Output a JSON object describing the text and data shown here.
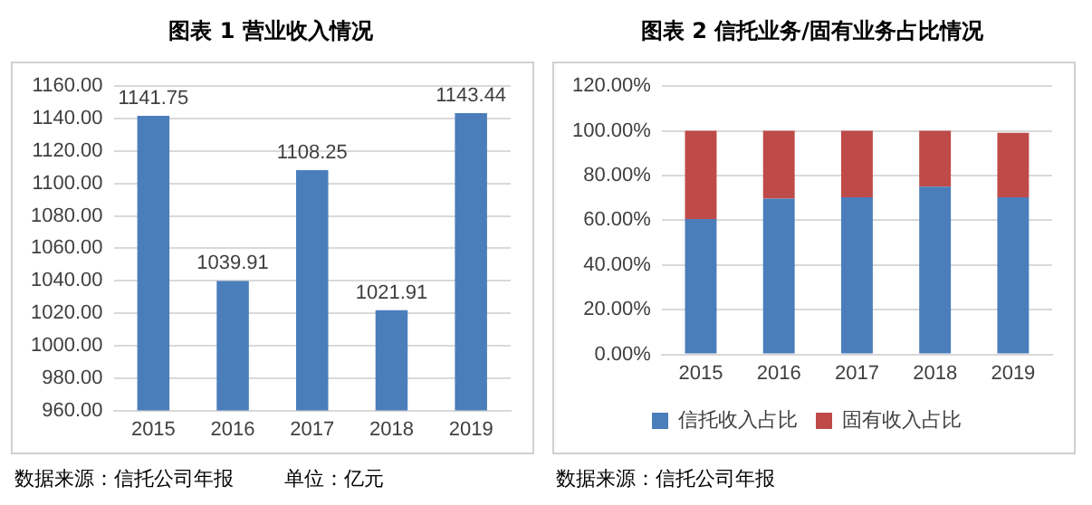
{
  "chart_data": [
    {
      "type": "bar",
      "title": "图表 1  营业收入情况",
      "categories": [
        "2015",
        "2016",
        "2017",
        "2018",
        "2019"
      ],
      "values": [
        1141.75,
        1039.91,
        1108.25,
        1021.91,
        1143.44
      ],
      "color": "#4a7ebb",
      "ylim": [
        960,
        1160
      ],
      "yticks": [
        {
          "value": 960,
          "label": "960.00"
        },
        {
          "value": 980,
          "label": "980.00"
        },
        {
          "value": 1000,
          "label": "1000.00"
        },
        {
          "value": 1020,
          "label": "1020.00"
        },
        {
          "value": 1040,
          "label": "1040.00"
        },
        {
          "value": 1060,
          "label": "1060.00"
        },
        {
          "value": 1080,
          "label": "1080.00"
        },
        {
          "value": 1100,
          "label": "1100.00"
        },
        {
          "value": 1120,
          "label": "1120.00"
        },
        {
          "value": 1140,
          "label": "1140.00"
        },
        {
          "value": 1160,
          "label": "1160.00"
        }
      ],
      "grid": "y",
      "data_labels": true,
      "legend": false,
      "annotations": [
        "数据来源：信托公司年报",
        "单位：亿元"
      ]
    },
    {
      "type": "bar",
      "title": "图表 2  信托业务/固有业务占比情况",
      "categories": [
        "2015",
        "2016",
        "2017",
        "2018",
        "2019"
      ],
      "stacked": true,
      "series": [
        {
          "name": "信托收入占比",
          "color": "#4a7ebb",
          "values": [
            60.6,
            69.7,
            70.3,
            75,
            70.3
          ]
        },
        {
          "name": "固有收入占比",
          "color": "#be4b48",
          "values": [
            39.4,
            30.3,
            29.7,
            25,
            28.8
          ]
        }
      ],
      "ylim": [
        0,
        120
      ],
      "yticks": [
        {
          "value": 0,
          "label": "0.00%"
        },
        {
          "value": 20,
          "label": "20.00%"
        },
        {
          "value": 40,
          "label": "40.00%"
        },
        {
          "value": 60,
          "label": "60.00%"
        },
        {
          "value": 80,
          "label": "80.00%"
        },
        {
          "value": 100,
          "label": "100.00%"
        },
        {
          "value": 120,
          "label": "120.00%"
        }
      ],
      "grid": "y",
      "legend": "bottom",
      "annotations": [
        "数据来源：信托公司年报"
      ]
    }
  ]
}
